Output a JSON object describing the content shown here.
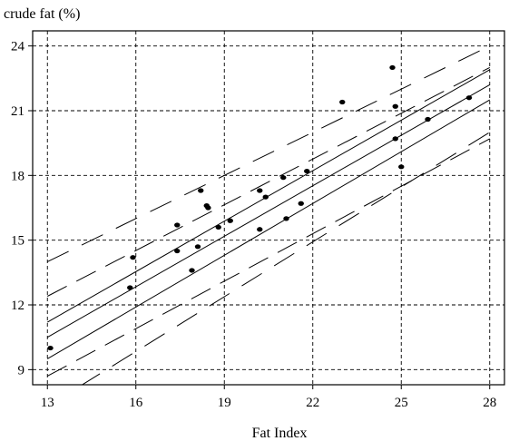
{
  "chart_data": {
    "type": "scatter",
    "title": "",
    "xlabel": "Fat Index",
    "ylabel": "crude fat (%)",
    "xlim": [
      12.5,
      28.5
    ],
    "ylim": [
      8.3,
      24.7
    ],
    "x_ticks": [
      13,
      16,
      19,
      22,
      25,
      28
    ],
    "y_ticks": [
      9,
      12,
      15,
      18,
      21,
      24
    ],
    "grid": true,
    "points": [
      {
        "x": 13.1,
        "y": 10.0
      },
      {
        "x": 15.8,
        "y": 12.8
      },
      {
        "x": 15.9,
        "y": 14.2
      },
      {
        "x": 17.4,
        "y": 14.5
      },
      {
        "x": 17.4,
        "y": 15.7
      },
      {
        "x": 17.9,
        "y": 13.6
      },
      {
        "x": 18.1,
        "y": 14.7
      },
      {
        "x": 18.2,
        "y": 17.3
      },
      {
        "x": 18.4,
        "y": 16.6
      },
      {
        "x": 18.45,
        "y": 16.5
      },
      {
        "x": 18.8,
        "y": 15.6
      },
      {
        "x": 19.2,
        "y": 15.9
      },
      {
        "x": 20.2,
        "y": 17.3
      },
      {
        "x": 20.2,
        "y": 15.5
      },
      {
        "x": 20.4,
        "y": 17.0
      },
      {
        "x": 21.0,
        "y": 17.9
      },
      {
        "x": 21.1,
        "y": 16.0
      },
      {
        "x": 21.6,
        "y": 16.7
      },
      {
        "x": 21.8,
        "y": 18.2
      },
      {
        "x": 23.0,
        "y": 21.4
      },
      {
        "x": 24.7,
        "y": 23.0
      },
      {
        "x": 24.8,
        "y": 21.2
      },
      {
        "x": 24.8,
        "y": 19.7
      },
      {
        "x": 25.0,
        "y": 18.4
      },
      {
        "x": 25.9,
        "y": 20.6
      },
      {
        "x": 27.3,
        "y": 21.6
      }
    ],
    "regression_line": {
      "x": [
        13.0,
        28.0
      ],
      "y": [
        10.5,
        22.2
      ]
    },
    "confidence_band": {
      "lower": {
        "x": [
          13.0,
          28.0
        ],
        "y": [
          9.5,
          21.5
        ]
      },
      "upper": {
        "x": [
          13.0,
          28.0
        ],
        "y": [
          11.2,
          22.9
        ]
      }
    },
    "prediction_band_inner": {
      "lower": {
        "x": [
          13.0,
          28.0
        ],
        "y": [
          8.7,
          19.7
        ]
      },
      "upper": {
        "x": [
          13.0,
          28.0
        ],
        "y": [
          12.4,
          23.0
        ]
      }
    },
    "prediction_band_outer": {
      "lower": {
        "x": [
          13.0,
          28.0
        ],
        "y": [
          7.3,
          20.0
        ]
      },
      "upper": {
        "x": [
          13.0,
          28.0
        ],
        "y": [
          14.0,
          24.0
        ]
      }
    }
  }
}
